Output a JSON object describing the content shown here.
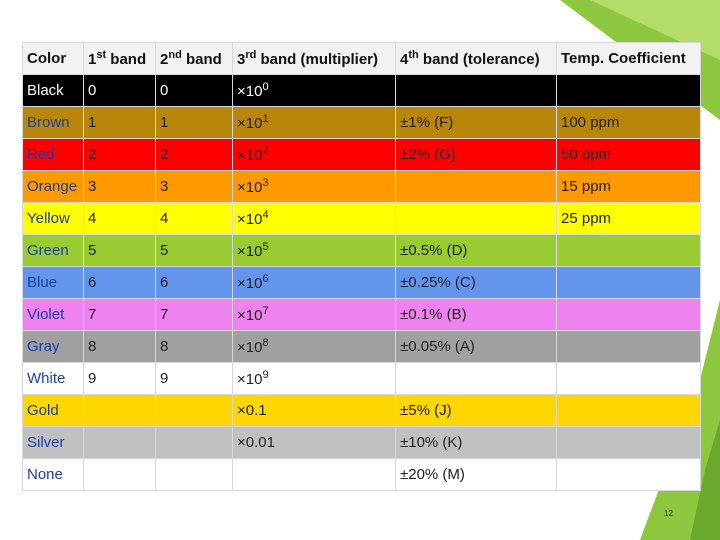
{
  "table": {
    "header": [
      "Color",
      {
        "base": "1",
        "sup": "st",
        "tail": " band"
      },
      {
        "base": "2",
        "sup": "nd",
        "tail": " band"
      },
      {
        "base": "3",
        "sup": "rd",
        "tail": " band (multiplier)"
      },
      {
        "base": "4",
        "sup": "th",
        "tail": " band (tolerance)"
      },
      "Temp. Coefficient"
    ],
    "rows": [
      {
        "fill": "#000000",
        "text_color": "#ffffff",
        "cells": [
          "Black",
          "0",
          "0",
          {
            "base": "×10",
            "sup": "0"
          },
          null,
          null
        ]
      },
      {
        "fill": "#b8860b",
        "text_color": "#222222",
        "cells": [
          "Brown",
          "1",
          "1",
          {
            "base": "×10",
            "sup": "1"
          },
          "±1% (F)",
          "100 ppm"
        ]
      },
      {
        "fill": "#ff0000",
        "text_color": "#222222",
        "cells": [
          "Red",
          "2",
          "2",
          {
            "base": "×10",
            "sup": "2"
          },
          "±2% (G)",
          "50 ppm"
        ]
      },
      {
        "fill": "#ff9900",
        "text_color": "#222222",
        "cells": [
          "Orange",
          "3",
          "3",
          {
            "base": "×10",
            "sup": "3"
          },
          null,
          "15 ppm"
        ]
      },
      {
        "fill": "#ffff00",
        "text_color": "#222222",
        "cells": [
          "Yellow",
          "4",
          "4",
          {
            "base": "×10",
            "sup": "4"
          },
          null,
          "25 ppm"
        ]
      },
      {
        "fill": "#99cc33",
        "text_color": "#222222",
        "cells": [
          "Green",
          "5",
          "5",
          {
            "base": "×10",
            "sup": "5"
          },
          "±0.5% (D)",
          null
        ]
      },
      {
        "fill": "#6495ed",
        "text_color": "#222222",
        "cells": [
          "Blue",
          "6",
          "6",
          {
            "base": "×10",
            "sup": "6"
          },
          "±0.25% (C)",
          null
        ]
      },
      {
        "fill": "#ee82ee",
        "text_color": "#222222",
        "cells": [
          "Violet",
          "7",
          "7",
          {
            "base": "×10",
            "sup": "7"
          },
          "±0.1% (B)",
          null
        ]
      },
      {
        "fill": "#a0a0a0",
        "text_color": "#222222",
        "cells": [
          "Gray",
          "8",
          "8",
          {
            "base": "×10",
            "sup": "8"
          },
          "±0.05% (A)",
          null
        ]
      },
      {
        "fill": "#ffffff",
        "text_color": "#222222",
        "cells": [
          "White",
          "9",
          "9",
          {
            "base": "×10",
            "sup": "9"
          },
          null,
          null
        ]
      },
      {
        "fill": "#ffd700",
        "text_color": "#222222",
        "cells": [
          "Gold",
          null,
          null,
          "×0.1",
          "±5% (J)",
          null
        ]
      },
      {
        "fill": "#c0c0c0",
        "text_color": "#222222",
        "cells": [
          "Silver",
          null,
          null,
          "×0.01",
          "±10% (K)",
          null
        ]
      },
      {
        "fill": "#ffffff",
        "text_color": "#222222",
        "cells": [
          "None",
          null,
          null,
          null,
          "±20% (M)",
          null
        ]
      }
    ]
  },
  "page_number": "12"
}
